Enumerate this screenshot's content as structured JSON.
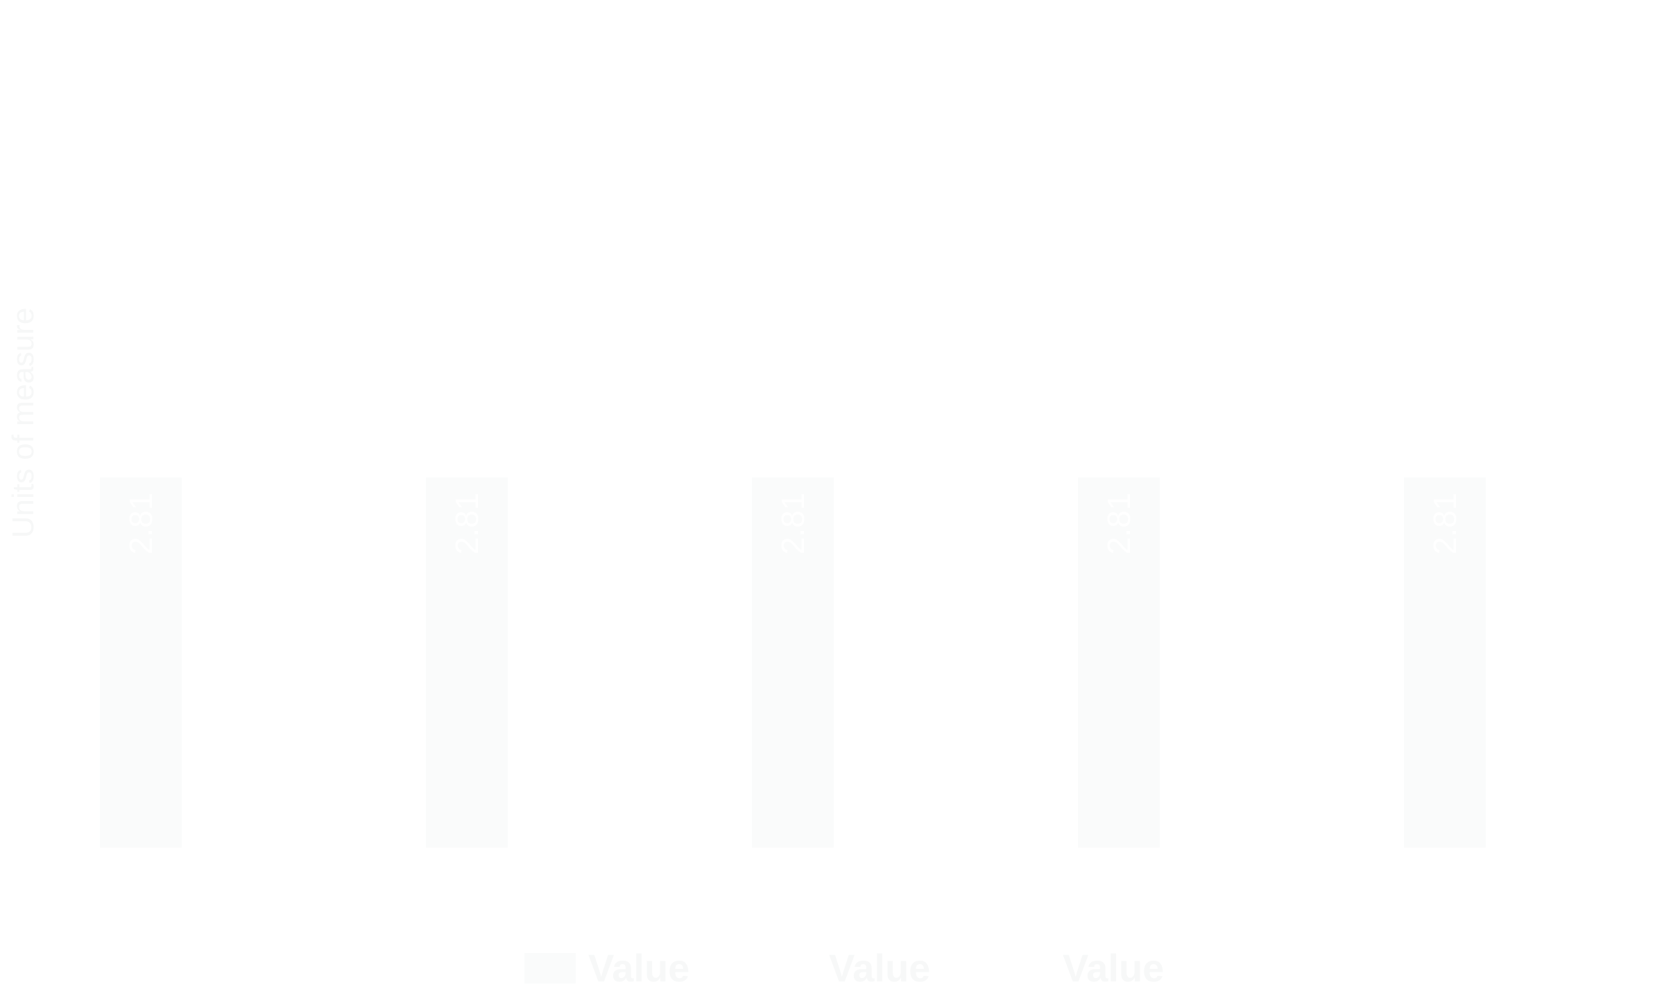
{
  "chart_data": {
    "type": "bar",
    "title": "",
    "xlabel": "",
    "ylabel": "Units of measure",
    "categories": [
      "",
      "",
      "",
      "",
      ""
    ],
    "series": [
      {
        "name": "Value",
        "values": [
          2.81,
          2.81,
          2.81,
          2.81,
          2.81
        ]
      }
    ],
    "data_labels": [
      "2.81",
      "2.81",
      "2.81",
      "2.81",
      "2.81"
    ],
    "ylim": [
      0,
      5.8
    ],
    "grid": false,
    "legend_position": "bottom",
    "legend": [
      "Value",
      "Value",
      "Value"
    ],
    "colors": {
      "bar": "#fafbfb",
      "bar_label": "#ffffff",
      "axis_label": "#f6f7f7",
      "legend_text": "#f7f8f8",
      "legend_swatch": "#fafbfb"
    }
  }
}
